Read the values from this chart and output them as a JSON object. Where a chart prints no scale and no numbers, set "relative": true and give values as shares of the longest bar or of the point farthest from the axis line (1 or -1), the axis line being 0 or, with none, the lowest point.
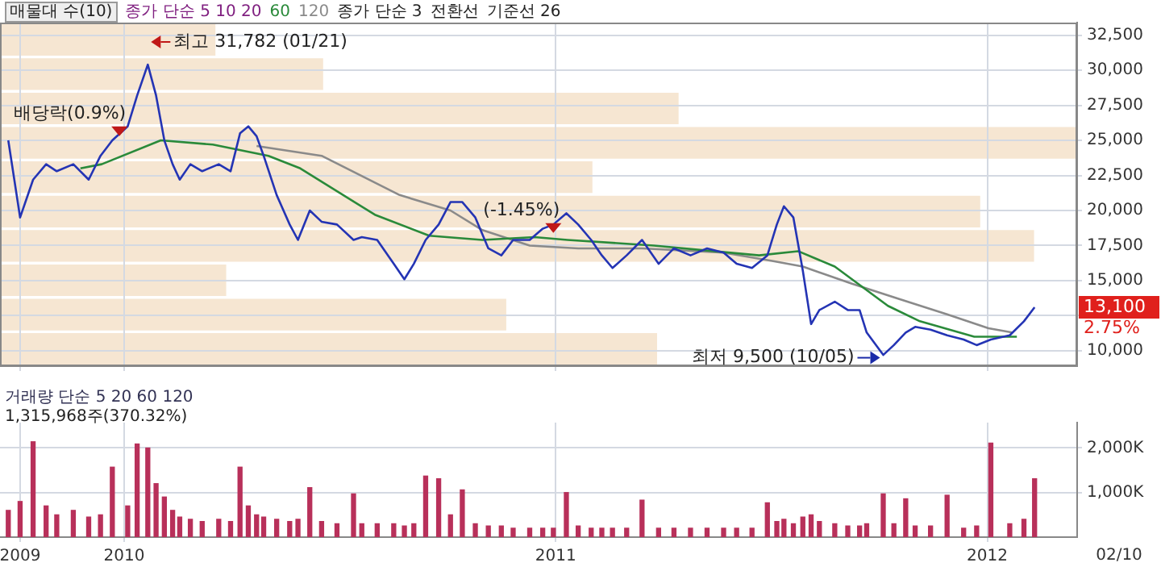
{
  "chart_data": [
    {
      "type": "bar",
      "title": "매물대 수(10)",
      "orientation": "horizontal",
      "relative": true,
      "categories": [
        null,
        null,
        null,
        null,
        null,
        null,
        null,
        null,
        null,
        null
      ],
      "values": [
        0.2,
        0.3,
        0.63,
        1,
        0.55,
        0.91,
        0.96,
        0.21,
        0.47,
        0.61
      ],
      "color": "#f6e6d2"
    },
    {
      "type": "line",
      "legend_title": "종가 단순 5 10 20",
      "legend": "top left",
      "grid": true,
      "marker": "none",
      "tick_labels": "y",
      "subtitle": "2.75%",
      "x": [
        "2009-09-25",
        "2009-10-05",
        "2009-10-16",
        "2009-10-27",
        "2009-11-05",
        "2009-11-19",
        "2009-12-02",
        "2009-12-12",
        "2009-12-22",
        "2010-01-04",
        "2010-01-12",
        "2010-01-21",
        "2010-01-28",
        "2010-02-04",
        "2010-02-11",
        "2010-02-17",
        "2010-02-26",
        "2010-03-08",
        "2010-03-22",
        "2010-04-01",
        "2010-04-09",
        "2010-04-16",
        "2010-04-23",
        "2010-04-29",
        "2010-05-10",
        "2010-05-21",
        "2010-05-28",
        "2010-06-07",
        "2010-06-17",
        "2010-06-30",
        "2010-07-14",
        "2010-07-21",
        "2010-08-03",
        "2010-08-17",
        "2010-08-26",
        "2010-09-03",
        "2010-09-13",
        "2010-09-24",
        "2010-10-04",
        "2010-10-14",
        "2010-10-25",
        "2010-11-05",
        "2010-11-16",
        "2010-11-26",
        "2010-12-10",
        "2010-12-21",
        "2010-12-30",
        "2011-01-10",
        "2011-01-20",
        "2011-01-31",
        "2011-02-09",
        "2011-02-18",
        "2011-03-02",
        "2011-03-15",
        "2011-03-29",
        "2011-04-11",
        "2011-04-25",
        "2011-05-09",
        "2011-05-23",
        "2011-06-03",
        "2011-06-16",
        "2011-06-29",
        "2011-07-07",
        "2011-07-13",
        "2011-07-21",
        "2011-07-29",
        "2011-08-05",
        "2011-08-12",
        "2011-08-25",
        "2011-09-05",
        "2011-09-15",
        "2011-09-21",
        "2011-10-05",
        "2011-10-14",
        "2011-10-24",
        "2011-11-01",
        "2011-11-14",
        "2011-11-28",
        "2011-12-12",
        "2011-12-23",
        "2012-01-04",
        "2012-01-20",
        "2012-02-01",
        "2012-02-10"
      ],
      "series": [
        {
          "color": "#2434b4",
          "values": [
            25000,
            19500,
            22200,
            23300,
            22800,
            23300,
            22200,
            23900,
            25000,
            26000,
            28200,
            30400,
            28200,
            25000,
            23300,
            22200,
            23300,
            22800,
            23300,
            22800,
            25500,
            26000,
            25300,
            23900,
            21100,
            19000,
            17900,
            20000,
            19200,
            19000,
            17900,
            18100,
            17900,
            16200,
            15100,
            16200,
            17900,
            19000,
            20600,
            20600,
            19500,
            17300,
            16800,
            17900,
            17900,
            18700,
            19000,
            19800,
            19000,
            17900,
            16800,
            15900,
            16800,
            17900,
            16200,
            17300,
            16800,
            17300,
            17000,
            16200,
            15900,
            16800,
            19000,
            20300,
            19500,
            15700,
            11900,
            12900,
            13500,
            12900,
            12900,
            11300,
            9700,
            10400,
            11300,
            11700,
            11500,
            11100,
            10800,
            10400,
            10800,
            11100,
            12100,
            13100
          ]
        },
        {
          "name": "60",
          "color": "#2a8a3a",
          "x": [
            "2009-11-25",
            "2009-12-13",
            "2010-02-01",
            "2010-03-17",
            "2010-05-03",
            "2010-05-30",
            "2010-08-01",
            "2010-09-16",
            "2010-10-31",
            "2010-12-14",
            "2011-01-11",
            "2011-03-25",
            "2011-06-22",
            "2011-07-25",
            "2011-08-25",
            "2011-10-09",
            "2011-11-05",
            "2011-12-21",
            "2012-01-26"
          ],
          "values": [
            23000,
            23300,
            25000,
            24700,
            23900,
            23000,
            19700,
            18200,
            17900,
            18100,
            17900,
            17500,
            16800,
            17100,
            16000,
            13200,
            12100,
            11000,
            11000
          ]
        },
        {
          "name": "120",
          "color": "#8a8a8a",
          "x": [
            "2010-04-23",
            "2010-06-17",
            "2010-08-22",
            "2010-10-04",
            "2010-10-31",
            "2010-12-10",
            "2011-01-20",
            "2011-03-15",
            "2011-05-23",
            "2011-07-03",
            "2011-07-29",
            "2011-09-08",
            "2011-10-18",
            "2011-11-28",
            "2012-01-02",
            "2012-01-22"
          ],
          "values": [
            24600,
            23900,
            21100,
            20000,
            18600,
            17500,
            17300,
            17300,
            17000,
            16400,
            16000,
            14800,
            13700,
            12600,
            11600,
            11300
          ]
        }
      ],
      "xlim": [
        "2009-09-18",
        "2012-03-17"
      ],
      "xticks": [
        {
          "value": "2009-10-05",
          "label": null
        },
        {
          "value": "2010-01-01",
          "label": null
        },
        {
          "value": "2011-01-01",
          "label": null
        },
        {
          "value": "2012-01-01",
          "label": null
        }
      ],
      "ylim": [
        8900,
        33400
      ],
      "yticks": [
        {
          "value": 10000,
          "label": "10,000"
        },
        {
          "value": 12500,
          "label": null
        },
        {
          "value": 15000,
          "label": "15,000"
        },
        {
          "value": 17500,
          "label": "17,500"
        },
        {
          "value": 20000,
          "label": "20,000"
        },
        {
          "value": 22500,
          "label": "22,500"
        },
        {
          "value": 25000,
          "label": "25,000"
        },
        {
          "value": 27500,
          "label": "27,500"
        },
        {
          "value": 30000,
          "label": "30,000"
        },
        {
          "value": 32500,
          "label": "32,500"
        }
      ],
      "annotations": [
        "종가 단순 3",
        "전환선",
        "기준선 26",
        "최고 31,782 (01/21)",
        "13,100",
        {
          "text": "최저 9,500 (10/05)",
          "x": "2011-10-05",
          "y": 9500
        },
        {
          "text": "배당락(0.9%)",
          "x": "2009-12-28",
          "y": 25300
        },
        {
          "text": "(-1.45%)",
          "x": "2010-12-30",
          "y": 18400
        }
      ]
    },
    {
      "type": "bar",
      "title": "거래량 단순 5 20 60 120",
      "subtitle": "1,315,968주(370.32%)",
      "color": "#b8305a",
      "grid": true,
      "x": [
        "2009-09-25",
        "2009-10-05",
        "2009-10-16",
        "2009-10-27",
        "2009-11-05",
        "2009-11-19",
        "2009-12-02",
        "2009-12-12",
        "2009-12-22",
        "2010-01-04",
        "2010-01-12",
        "2010-01-21",
        "2010-01-28",
        "2010-02-04",
        "2010-02-11",
        "2010-02-17",
        "2010-02-26",
        "2010-03-08",
        "2010-03-22",
        "2010-04-01",
        "2010-04-09",
        "2010-04-16",
        "2010-04-23",
        "2010-04-29",
        "2010-05-10",
        "2010-05-21",
        "2010-05-28",
        "2010-06-07",
        "2010-06-17",
        "2010-06-30",
        "2010-07-14",
        "2010-07-21",
        "2010-08-03",
        "2010-08-17",
        "2010-08-26",
        "2010-09-03",
        "2010-09-13",
        "2010-09-24",
        "2010-10-04",
        "2010-10-14",
        "2010-10-25",
        "2010-11-05",
        "2010-11-16",
        "2010-11-26",
        "2010-12-10",
        "2010-12-21",
        "2010-12-30",
        "2011-01-10",
        "2011-01-20",
        "2011-01-31",
        "2011-02-09",
        "2011-02-18",
        "2011-03-02",
        "2011-03-15",
        "2011-03-29",
        "2011-04-11",
        "2011-04-25",
        "2011-05-09",
        "2011-05-23",
        "2011-06-03",
        "2011-06-16",
        "2011-06-29",
        "2011-07-07",
        "2011-07-13",
        "2011-07-21",
        "2011-07-29",
        "2011-08-05",
        "2011-08-12",
        "2011-08-25",
        "2011-09-05",
        "2011-09-15",
        "2011-09-21",
        "2011-10-05",
        "2011-10-14",
        "2011-10-24",
        "2011-11-01",
        "2011-11-14",
        "2011-11-28",
        "2011-12-12",
        "2011-12-23",
        "2012-01-04",
        "2012-01-20",
        "2012-02-01",
        "2012-02-10"
      ],
      "values": [
        600,
        800,
        2140,
        700,
        500,
        600,
        450,
        500,
        1570,
        700,
        2090,
        2000,
        1200,
        900,
        600,
        450,
        400,
        350,
        400,
        350,
        1570,
        700,
        500,
        450,
        400,
        350,
        400,
        1110,
        350,
        300,
        970,
        300,
        300,
        300,
        250,
        300,
        1370,
        1310,
        500,
        1060,
        300,
        250,
        250,
        200,
        200,
        200,
        200,
        1000,
        250,
        200,
        200,
        200,
        200,
        830,
        200,
        200,
        200,
        200,
        200,
        200,
        200,
        770,
        350,
        400,
        300,
        450,
        500,
        350,
        300,
        250,
        250,
        300,
        970,
        300,
        860,
        250,
        250,
        940,
        200,
        250,
        2110,
        300,
        400,
        1310
      ],
      "xlim": [
        "2009-09-18",
        "2012-03-17"
      ],
      "xticks": [
        {
          "value": "2009-10-05",
          "label": "2009"
        },
        {
          "value": "2010-01-01",
          "label": "2010"
        },
        {
          "value": "2011-01-01",
          "label": "2011"
        },
        {
          "value": "2012-01-01",
          "label": "2012"
        }
      ],
      "ylim": [
        0,
        2570
      ],
      "yticks": [
        {
          "value": 1000,
          "label": "1,000K"
        },
        {
          "value": 2000,
          "label": "2,000K"
        }
      ],
      "annotations": [
        "02/10"
      ]
    }
  ]
}
